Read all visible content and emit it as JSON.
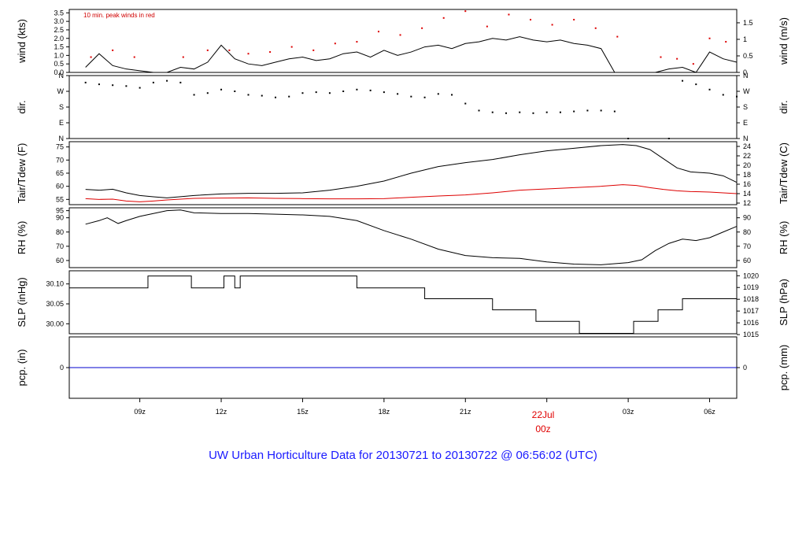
{
  "title": "UW Urban Horticulture Data for 20130721  to  20130722 @ 06:56:02  (UTC)",
  "x_axis": {
    "ticks": [
      "09z",
      "12z",
      "15z",
      "18z",
      "21z",
      "00z",
      "03z",
      "06z"
    ],
    "day_label": "22Jul",
    "day_sublabel": "00z"
  },
  "colors": {
    "line": "#000000",
    "peak": "#dd0000",
    "dewpoint": "#dd0000",
    "precip": "#0000cc",
    "title": "#1a1aff"
  },
  "chart_data": [
    {
      "type": "line",
      "panel": "wind",
      "ylabel_left": "wind (kts)",
      "ylabel_right": "wind (m/s)",
      "annotation": "10 min. peak winds in red",
      "left_ticks": [
        "0.0",
        "0.5",
        "1.0",
        "1.5",
        "2.0",
        "2.5",
        "3.0",
        "3.5"
      ],
      "right_ticks": [
        "0",
        "0.5",
        "1",
        "1.5"
      ],
      "ylim": [
        0,
        3.7
      ],
      "series": [
        {
          "name": "wind",
          "x": [
            7.0,
            7.5,
            8.0,
            8.5,
            9.0,
            9.5,
            10.0,
            10.5,
            11.0,
            11.5,
            12.0,
            12.5,
            13.0,
            13.5,
            14.0,
            14.5,
            15.0,
            15.5,
            16.0,
            16.5,
            17.0,
            17.5,
            18.0,
            18.5,
            19.0,
            19.5,
            20.0,
            20.5,
            21.0,
            21.5,
            22.0,
            22.5,
            23.0,
            23.5,
            24.0,
            24.5,
            25.0,
            25.5,
            26.0,
            26.5,
            27.0,
            27.5,
            28.0,
            28.5,
            29.0,
            29.5,
            30.0,
            30.5,
            31.0
          ],
          "values": [
            0.3,
            1.1,
            0.4,
            0.2,
            0.1,
            0.0,
            0.0,
            0.3,
            0.2,
            0.6,
            1.6,
            0.8,
            0.5,
            0.4,
            0.6,
            0.8,
            0.9,
            0.7,
            0.8,
            1.1,
            1.2,
            0.9,
            1.3,
            1.0,
            1.2,
            1.5,
            1.6,
            1.4,
            1.7,
            1.8,
            2.0,
            1.9,
            2.1,
            1.9,
            1.8,
            1.9,
            1.7,
            1.6,
            1.4,
            0.0,
            0.0,
            0.0,
            0.0,
            0.2,
            0.3,
            0.0,
            1.2,
            0.8,
            0.6
          ]
        },
        {
          "name": "10 min. peak winds",
          "x": [
            7.2,
            8.0,
            8.8,
            10.6,
            11.5,
            12.3,
            13.0,
            13.8,
            14.6,
            15.4,
            16.2,
            17.0,
            17.8,
            18.6,
            19.4,
            20.2,
            21.0,
            21.8,
            22.6,
            23.4,
            24.2,
            25.0,
            25.8,
            26.6,
            28.2,
            28.8,
            29.4,
            30.0,
            30.6
          ],
          "values": [
            0.9,
            1.3,
            0.9,
            0.9,
            1.3,
            1.3,
            1.1,
            1.2,
            1.5,
            1.3,
            1.7,
            1.8,
            2.4,
            2.2,
            2.6,
            3.2,
            3.6,
            2.7,
            3.4,
            3.1,
            2.8,
            3.1,
            2.6,
            2.1,
            0.9,
            0.8,
            0.5,
            2.0,
            1.8
          ]
        }
      ]
    },
    {
      "type": "scatter",
      "panel": "direction",
      "ylabel_left": "dir.",
      "ylabel_right": "dir.",
      "left_ticks": [
        "N",
        "E",
        "S",
        "W",
        "N"
      ],
      "right_ticks": [
        "N",
        "E",
        "S",
        "W",
        "N"
      ],
      "ylim": [
        0,
        360
      ],
      "series": [
        {
          "name": "direction",
          "x": [
            7.0,
            7.5,
            8.0,
            8.5,
            9.0,
            9.5,
            10.0,
            10.5,
            11.0,
            11.5,
            12.0,
            12.5,
            13.0,
            13.5,
            14.0,
            14.5,
            15.0,
            15.5,
            16.0,
            16.5,
            17.0,
            17.5,
            18.0,
            18.5,
            19.0,
            19.5,
            20.0,
            20.5,
            21.0,
            21.5,
            22.0,
            22.5,
            23.0,
            23.5,
            24.0,
            24.5,
            25.0,
            25.5,
            26.0,
            26.5,
            27.0,
            28.5,
            29.0,
            29.5,
            30.0,
            30.5,
            31.0
          ],
          "values": [
            320,
            310,
            305,
            300,
            290,
            320,
            330,
            320,
            250,
            260,
            280,
            270,
            250,
            245,
            235,
            240,
            260,
            265,
            260,
            270,
            280,
            275,
            265,
            255,
            240,
            235,
            255,
            250,
            200,
            160,
            150,
            145,
            150,
            145,
            150,
            150,
            155,
            160,
            160,
            155,
            0,
            0,
            330,
            310,
            280,
            250,
            240
          ]
        }
      ]
    },
    {
      "type": "line",
      "panel": "temperature",
      "ylabel_left": "Tair/Tdew (F)",
      "ylabel_right": "Tair/Tdew (C)",
      "left_ticks": [
        "55",
        "60",
        "65",
        "70",
        "75"
      ],
      "right_ticks": [
        "12",
        "14",
        "16",
        "18",
        "20",
        "22",
        "24"
      ],
      "ylim": [
        53,
        77
      ],
      "series": [
        {
          "name": "Tair",
          "x": [
            7.0,
            7.5,
            8.0,
            8.5,
            9.0,
            9.5,
            10.0,
            11.0,
            12.0,
            13.0,
            14.0,
            15.0,
            16.0,
            17.0,
            18.0,
            19.0,
            20.0,
            21.0,
            22.0,
            23.0,
            24.0,
            25.0,
            26.0,
            26.8,
            27.3,
            27.8,
            28.3,
            28.8,
            29.3,
            30.0,
            30.5,
            31.0
          ],
          "values": [
            58.8,
            58.5,
            58.9,
            57.5,
            56.5,
            56.0,
            55.6,
            56.5,
            57.1,
            57.3,
            57.3,
            57.5,
            58.5,
            60.0,
            62.0,
            65.0,
            67.5,
            69.0,
            70.2,
            72.0,
            73.5,
            74.5,
            75.5,
            75.9,
            75.5,
            74.0,
            70.5,
            67.0,
            65.5,
            65.0,
            64.0,
            61.5
          ]
        },
        {
          "name": "Tdew",
          "x": [
            7.0,
            7.5,
            8.0,
            8.5,
            9.0,
            9.5,
            10.0,
            11.0,
            12.0,
            13.0,
            14.0,
            15.0,
            16.0,
            17.0,
            18.0,
            19.0,
            20.0,
            21.0,
            22.0,
            23.0,
            24.0,
            25.0,
            26.0,
            26.8,
            27.3,
            27.8,
            28.3,
            28.8,
            29.3,
            30.0,
            30.5,
            31.0
          ],
          "values": [
            55.3,
            55.0,
            55.1,
            54.4,
            54.1,
            54.4,
            54.8,
            55.4,
            55.5,
            55.6,
            55.4,
            55.3,
            55.2,
            55.2,
            55.3,
            55.8,
            56.3,
            56.7,
            57.5,
            58.5,
            59.0,
            59.5,
            60.0,
            60.6,
            60.3,
            59.5,
            58.8,
            58.3,
            58.0,
            57.8,
            57.5,
            57.2
          ]
        }
      ]
    },
    {
      "type": "line",
      "panel": "rh",
      "ylabel_left": "RH (%)",
      "ylabel_right": "RH (%)",
      "left_ticks": [
        "60",
        "70",
        "80",
        "90",
        "95"
      ],
      "right_ticks": [
        "60",
        "70",
        "80",
        "90"
      ],
      "ylim": [
        55,
        97
      ],
      "series": [
        {
          "name": "RH",
          "x": [
            7.0,
            7.5,
            7.8,
            8.2,
            8.5,
            9.0,
            9.5,
            10.0,
            10.5,
            11.0,
            12.0,
            13.0,
            14.0,
            15.0,
            16.0,
            17.0,
            18.0,
            19.0,
            20.0,
            21.0,
            22.0,
            23.0,
            24.0,
            25.0,
            26.0,
            27.0,
            27.5,
            28.0,
            28.5,
            29.0,
            29.5,
            30.0,
            30.5,
            31.0
          ],
          "values": [
            85.5,
            88.0,
            90.0,
            86.0,
            88.0,
            91.0,
            93.0,
            95.0,
            95.5,
            93.5,
            93.0,
            93.0,
            92.5,
            92.0,
            91.0,
            88.0,
            81.0,
            75.0,
            68.0,
            63.5,
            62.0,
            61.5,
            59.0,
            57.5,
            57.0,
            58.5,
            60.5,
            67.0,
            72.0,
            75.0,
            74.0,
            76.0,
            80.0,
            84.0
          ]
        }
      ]
    },
    {
      "type": "line",
      "panel": "pressure",
      "ylabel_left": "SLP (inHg)",
      "ylabel_right": "SLP (hPa)",
      "left_ticks": [
        "30.00",
        "30.05",
        "30.10"
      ],
      "right_ticks": [
        "1015",
        "1016",
        "1017",
        "1018",
        "1019",
        "1020"
      ],
      "ylim": [
        29.975,
        30.133
      ],
      "series": [
        {
          "name": "SLP",
          "step": true,
          "x": [
            6.4,
            9.3,
            10.9,
            12.1,
            12.5,
            12.7,
            17.0,
            19.5,
            22.0,
            23.6,
            25.2,
            27.2,
            28.1,
            29.0,
            31.0
          ],
          "values": [
            30.09,
            30.12,
            30.09,
            30.12,
            30.09,
            30.12,
            30.09,
            30.063,
            30.035,
            30.006,
            29.976,
            30.006,
            30.035,
            30.063,
            30.063
          ]
        }
      ]
    },
    {
      "type": "line",
      "panel": "precip",
      "ylabel_left": "pcp. (in)",
      "ylabel_right": "pcp. (mm)",
      "left_ticks": [
        "0"
      ],
      "right_ticks": [
        "0"
      ],
      "ylim": [
        -1,
        1
      ],
      "series": [
        {
          "name": "precip",
          "x": [
            6.4,
            31.0
          ],
          "values": [
            0,
            0
          ]
        }
      ]
    }
  ]
}
